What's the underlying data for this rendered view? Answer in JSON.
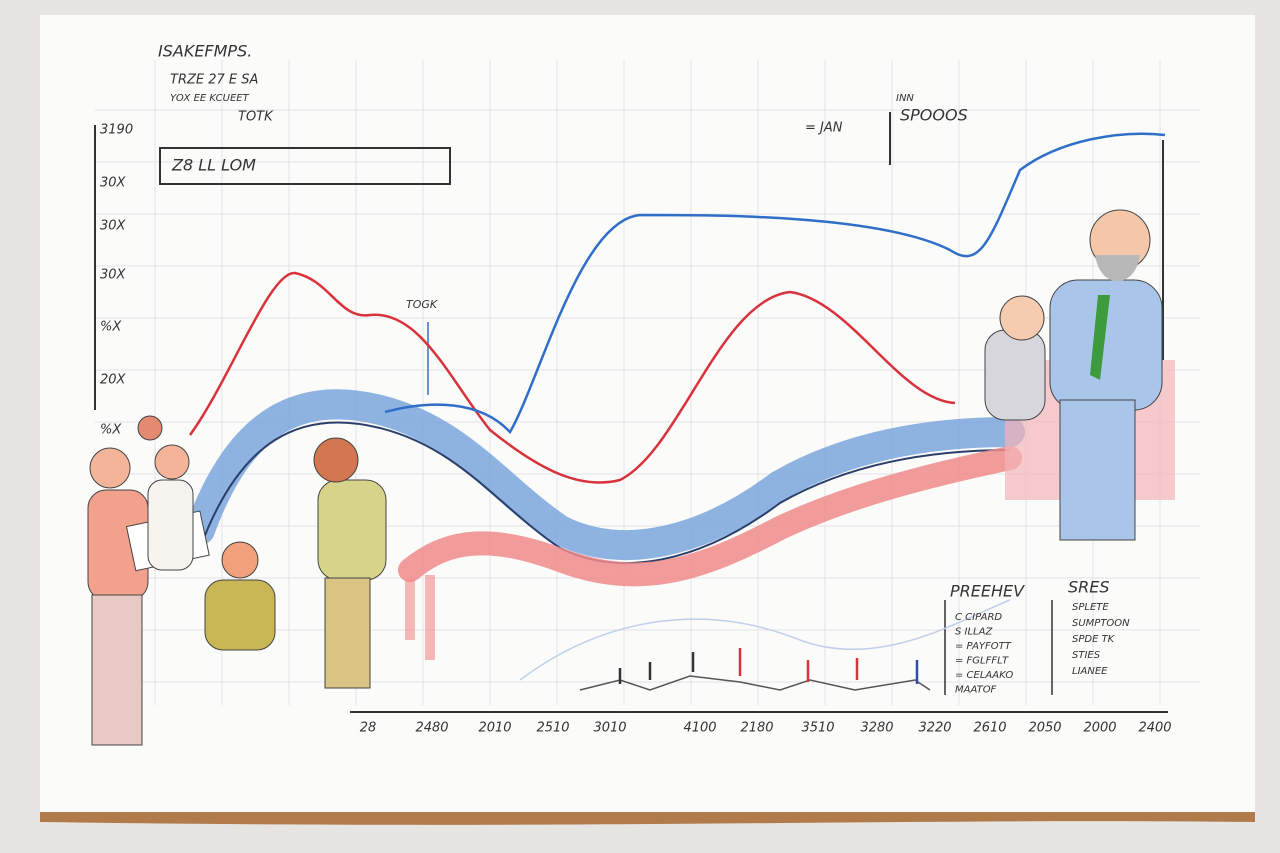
{
  "header": {
    "title": "ISAKEFMPS.",
    "notes": [
      "TRZE 27 E SA",
      "YOX EE KCUEET",
      "TOTK"
    ]
  },
  "callout": "Z8 LL LOM",
  "y_labels": [
    "3190",
    "30X",
    "30X",
    "30X",
    "%X",
    "20X",
    "%X"
  ],
  "annotations": {
    "peak": "TOGK",
    "jan": "= JAN",
    "inn": "INN",
    "right_title": "SPOOOS"
  },
  "x_labels": [
    "28",
    "2480",
    "2010",
    "2510",
    "3010",
    "4100",
    "2180",
    "3510",
    "3280",
    "3220",
    "2610",
    "2050",
    "2000",
    "2400"
  ],
  "legend_left": {
    "title": "PREEHEV",
    "items": [
      "C CIPARD",
      "S ILLAZ",
      "= PAYFOTT",
      "= FGLFFLT",
      "= CELAAKO",
      "MAATOF"
    ]
  },
  "legend_right": {
    "title": "SRES",
    "items": [
      "SPLETE",
      "SUMPTOON",
      "SPDE TK",
      "STIES",
      "LIANEE"
    ]
  }
}
